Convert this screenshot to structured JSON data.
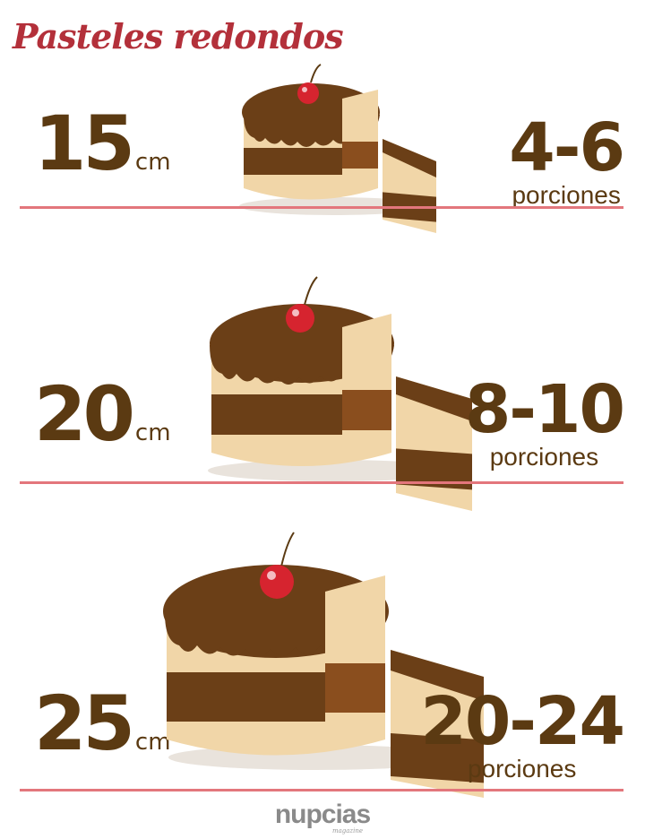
{
  "title": "Pasteles redondos",
  "rows": [
    {
      "size": "15",
      "unit": "cm",
      "portions": "4-6",
      "portions_label": "porciones"
    },
    {
      "size": "20",
      "unit": "cm",
      "portions": "8-10",
      "portions_label": "porciones"
    },
    {
      "size": "25",
      "unit": "cm",
      "portions": "20-24",
      "portions_label": "porciones"
    }
  ],
  "brand": {
    "name": "nupcias",
    "sub": "magazine"
  },
  "colors": {
    "title": "#b3303a",
    "text": "#5b3a12",
    "line": "#e3767c",
    "chocolate": "#6b3f17",
    "sponge": "#f1d6a8",
    "cherry": "#d6242f"
  }
}
